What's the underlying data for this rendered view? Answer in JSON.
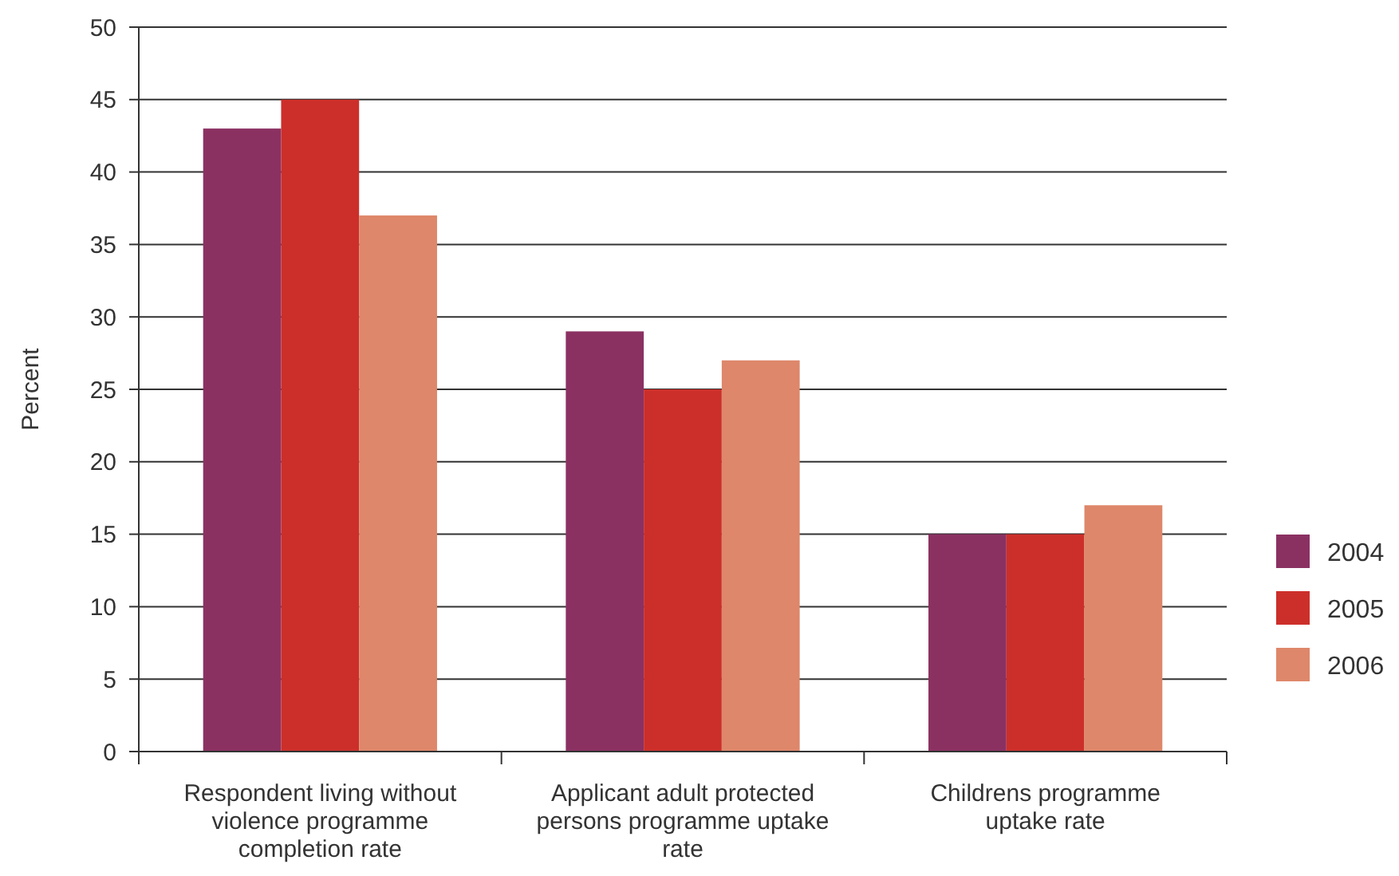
{
  "chart_data": {
    "type": "bar",
    "ylabel": "Percent",
    "categories": [
      "Respondent living without violence programme completion rate",
      "Applicant adult protected persons programme uptake rate",
      "Childrens programme uptake rate"
    ],
    "series": [
      {
        "name": "2004",
        "color": "#8b3162",
        "values": [
          43,
          29,
          15
        ]
      },
      {
        "name": "2005",
        "color": "#cc2f2a",
        "values": [
          45,
          25,
          15
        ]
      },
      {
        "name": "2006",
        "color": "#de876a",
        "values": [
          37,
          27,
          17
        ]
      }
    ],
    "ylim": [
      0,
      50
    ],
    "yticks": [
      0,
      5,
      10,
      15,
      20,
      25,
      30,
      35,
      40,
      45,
      50
    ],
    "grid": "y",
    "legend": "right"
  }
}
